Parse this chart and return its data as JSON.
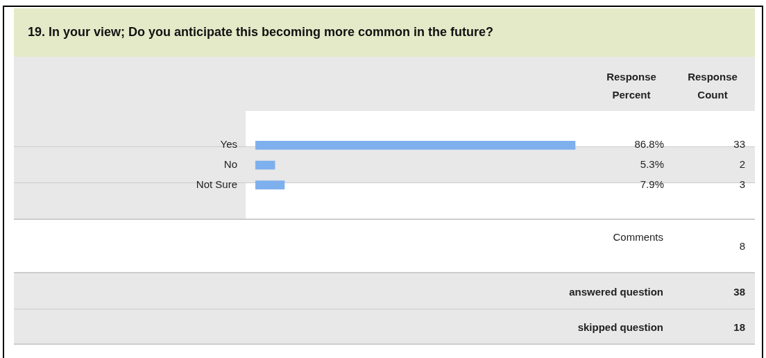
{
  "chart_data": {
    "type": "bar",
    "orientation": "horizontal",
    "title": "19. In your view; Do you anticipate this becoming more common in the future?",
    "categories": [
      "Yes",
      "No",
      "Not Sure"
    ],
    "values": [
      86.8,
      5.3,
      7.9
    ],
    "value_labels": [
      "86.8%",
      "5.3%",
      "7.9%"
    ],
    "color": "#7fb0ee",
    "legend": false,
    "tick_labels": "y",
    "annotations": [
      "Response Percent",
      "Response Count",
      "33",
      "2",
      "3",
      "Comments",
      "8",
      "answered question",
      "38",
      "skipped question",
      "18"
    ]
  }
}
